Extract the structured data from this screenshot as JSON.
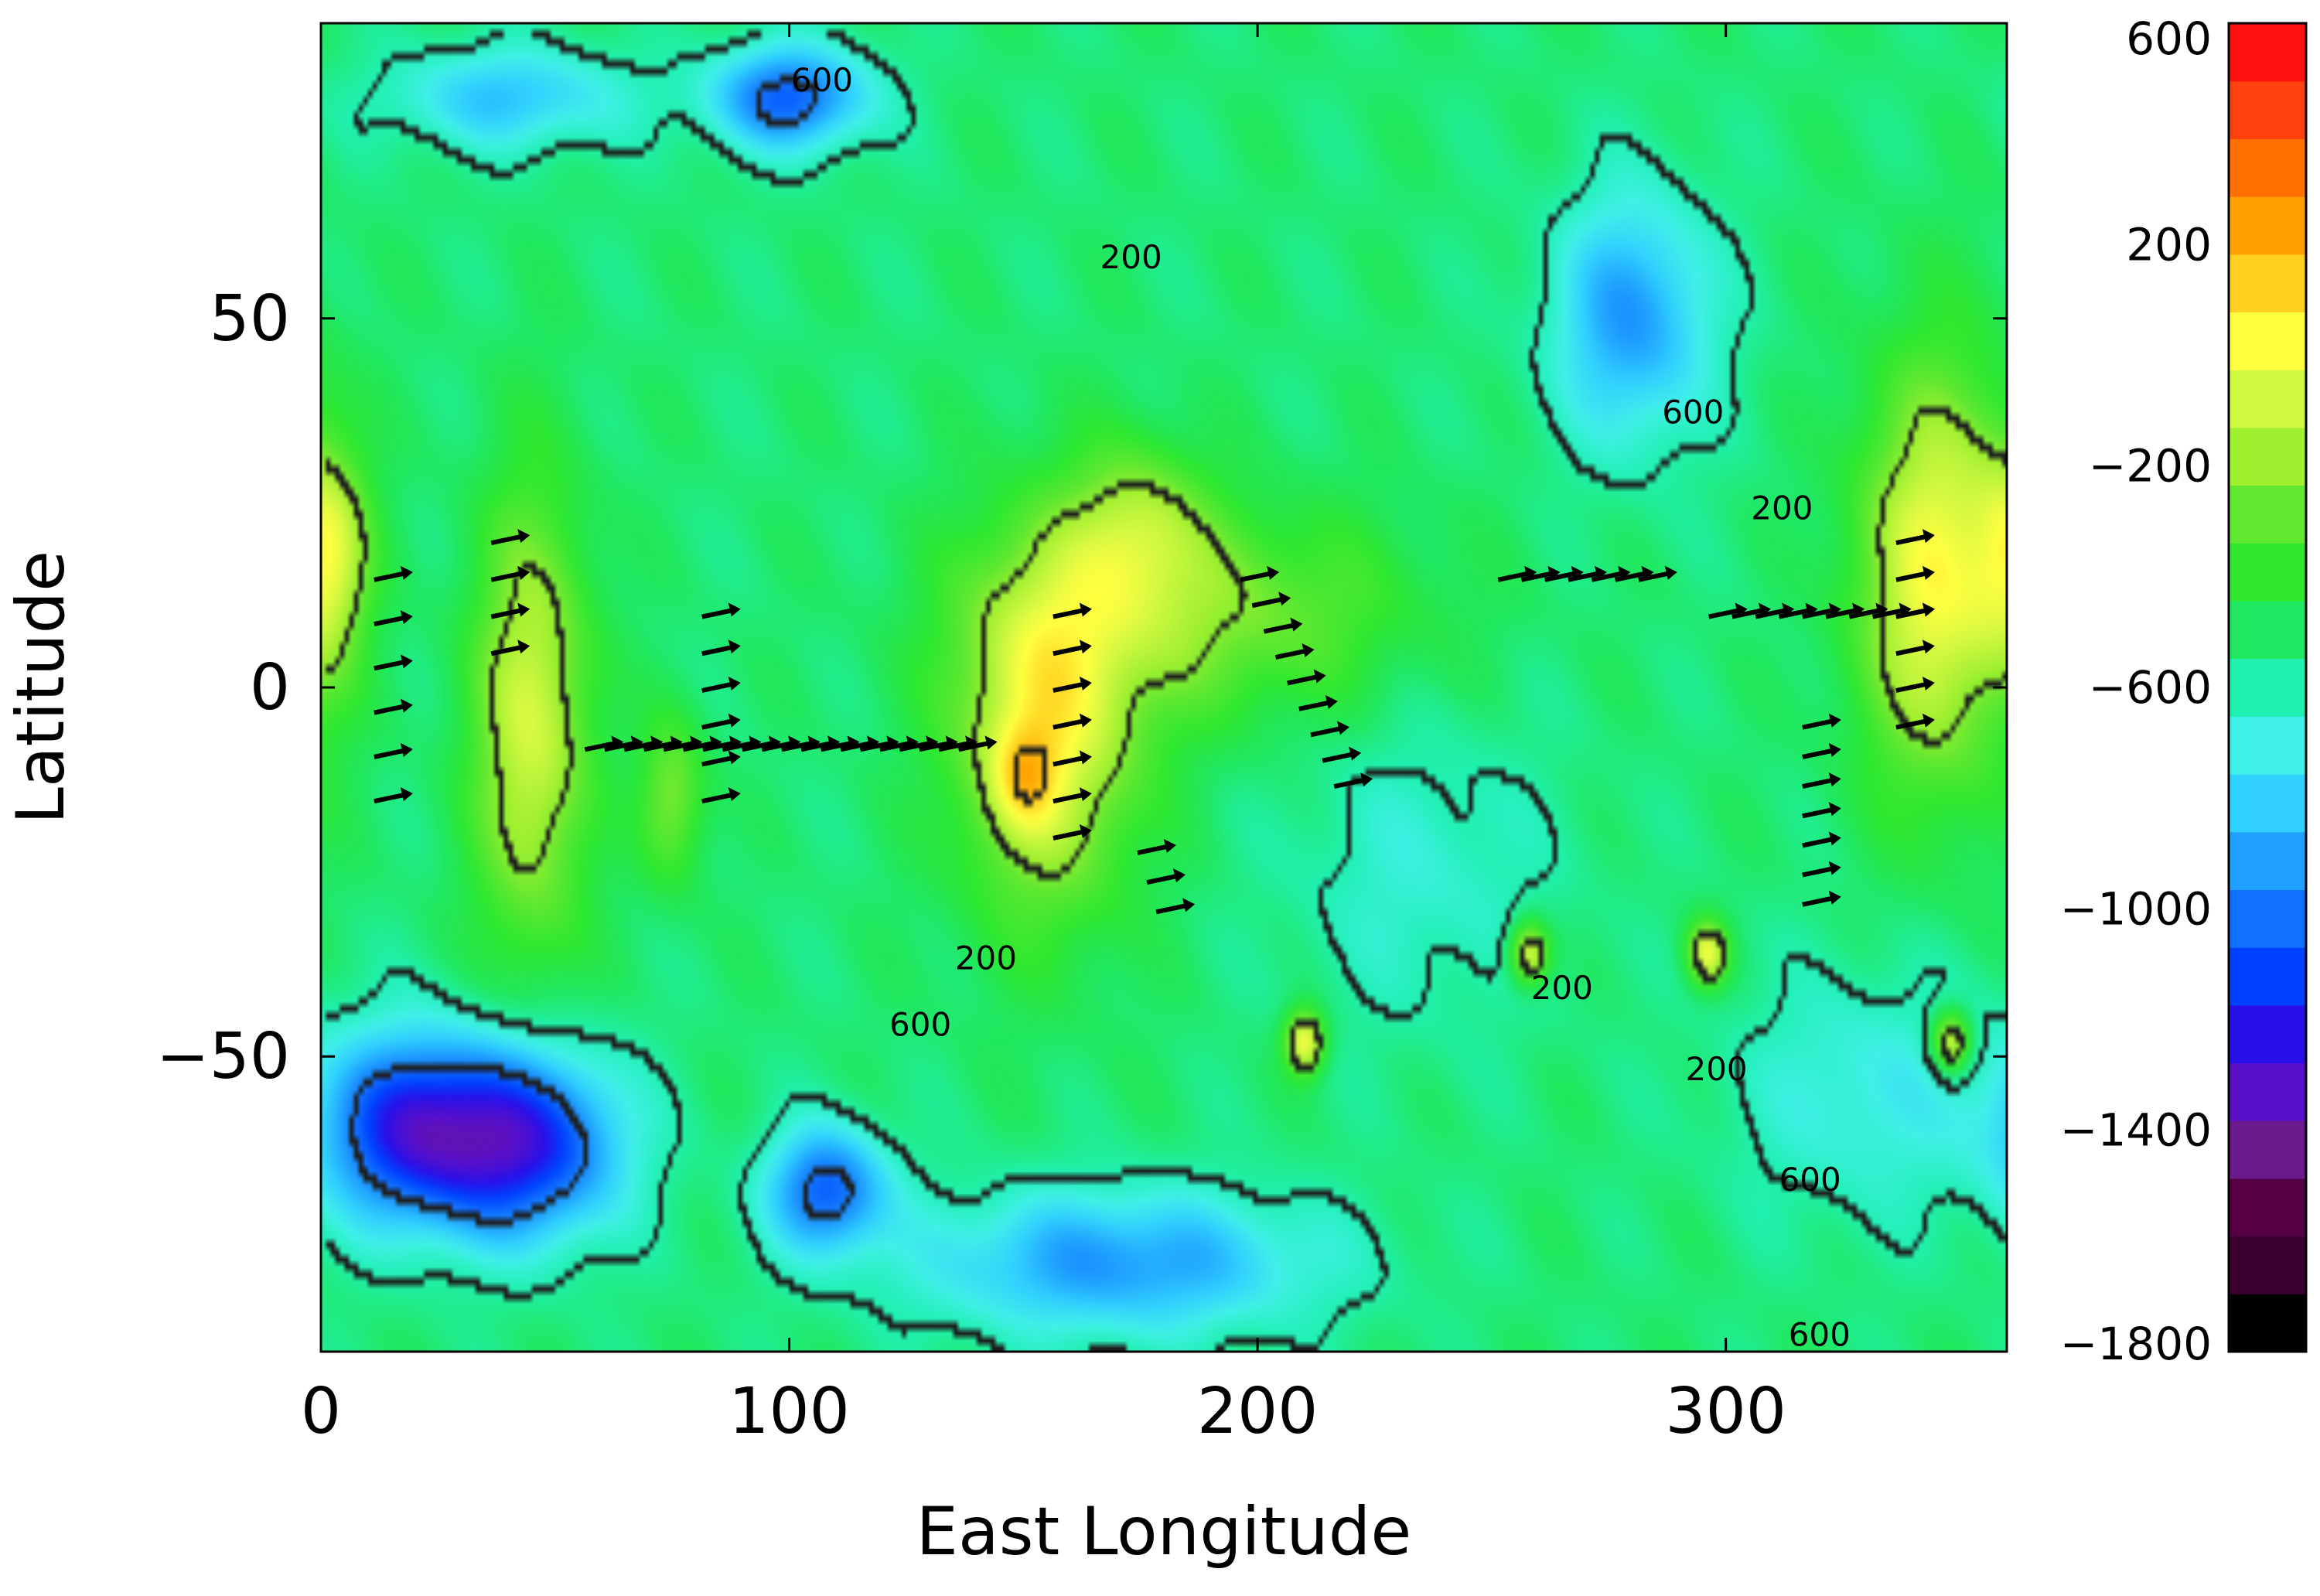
{
  "chart_data": {
    "type": "heatmap",
    "title": "",
    "xlabel": "East Longitude",
    "ylabel": "Latitude",
    "xlim": [
      0,
      360
    ],
    "ylim": [
      -90,
      90
    ],
    "x_ticks": [
      0,
      100,
      200,
      300
    ],
    "y_ticks": [
      -50,
      0,
      50
    ],
    "colorbar": {
      "ticks": [
        600,
        200,
        -200,
        -600,
        -1000,
        -1400,
        -1800
      ],
      "range": [
        -1800,
        600
      ],
      "colors": [
        "#000000",
        "#3a0030",
        "#550045",
        "#6a1a8a",
        "#5a10c8",
        "#2a10e8",
        "#0040ff",
        "#1070ff",
        "#20a0ff",
        "#30d0ff",
        "#40f0e8",
        "#20f0b0",
        "#20e860",
        "#30e830",
        "#60e830",
        "#a0f030",
        "#d0f840",
        "#ffff40",
        "#ffd020",
        "#ffa000",
        "#ff7000",
        "#ff4010",
        "#ff1010"
      ]
    },
    "contour_labels": [
      {
        "text": "600",
        "x": 107,
        "y": 82
      },
      {
        "text": "200",
        "x": 173,
        "y": 58
      },
      {
        "text": "600",
        "x": 293,
        "y": 37
      },
      {
        "text": "200",
        "x": 312,
        "y": 24
      },
      {
        "text": "200",
        "x": 142,
        "y": -37
      },
      {
        "text": "600",
        "x": 128,
        "y": -46
      },
      {
        "text": "200",
        "x": 265,
        "y": -41
      },
      {
        "text": "200",
        "x": 298,
        "y": -52
      },
      {
        "text": "600",
        "x": 318,
        "y": -67
      },
      {
        "text": "600",
        "x": 320,
        "y": -88
      }
    ],
    "field": {
      "base": -520,
      "centers": [
        {
          "lon": 155,
          "lat": -5,
          "amp": 540,
          "slon": 14,
          "slat": 18
        },
        {
          "lon": 150,
          "lat": -12,
          "amp": 280,
          "slon": 5,
          "slat": 5
        },
        {
          "lon": 45,
          "lat": -5,
          "amp": 470,
          "slon": 9,
          "slat": 22
        },
        {
          "lon": 345,
          "lat": 15,
          "amp": 560,
          "slon": 12,
          "slat": 20
        },
        {
          "lon": 2,
          "lat": 18,
          "amp": 380,
          "slon": 6,
          "slat": 10
        },
        {
          "lon": 190,
          "lat": 10,
          "amp": 300,
          "slon": 30,
          "slat": 10
        },
        {
          "lon": 210,
          "lat": -48,
          "amp": 560,
          "slon": 3,
          "slat": 3
        },
        {
          "lon": 258,
          "lat": -36,
          "amp": 520,
          "slon": 3,
          "slat": 3
        },
        {
          "lon": 296,
          "lat": -36,
          "amp": 520,
          "slon": 3,
          "slat": 3
        },
        {
          "lon": 348,
          "lat": -48,
          "amp": 520,
          "slon": 3,
          "slat": 3
        },
        {
          "lon": 175,
          "lat": 22,
          "amp": 300,
          "slon": 10,
          "slat": 8
        },
        {
          "lon": 75,
          "lat": -15,
          "amp": 300,
          "slon": 5,
          "slat": 8
        },
        {
          "lon": 20,
          "lat": -60,
          "amp": -700,
          "slon": 14,
          "slat": 9
        },
        {
          "lon": 45,
          "lat": -62,
          "amp": -650,
          "slon": 14,
          "slat": 9
        },
        {
          "lon": 108,
          "lat": -68,
          "amp": -550,
          "slon": 9,
          "slat": 6
        },
        {
          "lon": 170,
          "lat": -78,
          "amp": -420,
          "slon": 30,
          "slat": 7
        },
        {
          "lon": 100,
          "lat": 80,
          "amp": -550,
          "slon": 12,
          "slat": 5
        },
        {
          "lon": 40,
          "lat": 80,
          "amp": -320,
          "slon": 18,
          "slat": 5
        },
        {
          "lon": 280,
          "lat": 50,
          "amp": -420,
          "slon": 12,
          "slat": 12
        },
        {
          "lon": 330,
          "lat": -55,
          "amp": -200,
          "slon": 20,
          "slat": 12
        },
        {
          "lon": 235,
          "lat": -25,
          "amp": -150,
          "slon": 20,
          "slat": 15
        }
      ]
    },
    "wind_vectors": [
      {
        "lon": 60,
        "lat": -8,
        "count": 20,
        "dlon": 4.2,
        "dlat": 0
      },
      {
        "lon": 40,
        "lat": 20,
        "count": 4,
        "dlon": 0,
        "dlat": -5
      },
      {
        "lon": 15,
        "lat": 15,
        "count": 6,
        "dlon": 0,
        "dlat": -6
      },
      {
        "lon": 85,
        "lat": 10,
        "count": 6,
        "dlon": 0,
        "dlat": -5
      },
      {
        "lon": 160,
        "lat": 10,
        "count": 7,
        "dlon": 0,
        "dlat": -5
      },
      {
        "lon": 200,
        "lat": 15,
        "count": 9,
        "dlon": 2.5,
        "dlat": -3.5
      },
      {
        "lon": 255,
        "lat": 15,
        "count": 7,
        "dlon": 5,
        "dlat": 0
      },
      {
        "lon": 300,
        "lat": 10,
        "count": 9,
        "dlon": 5,
        "dlat": 0
      },
      {
        "lon": 320,
        "lat": -5,
        "count": 7,
        "dlon": 0,
        "dlat": -4
      },
      {
        "lon": 178,
        "lat": -22,
        "count": 3,
        "dlon": 2,
        "dlat": -4
      },
      {
        "lon": 340,
        "lat": 20,
        "count": 6,
        "dlon": 0,
        "dlat": -5
      }
    ]
  }
}
